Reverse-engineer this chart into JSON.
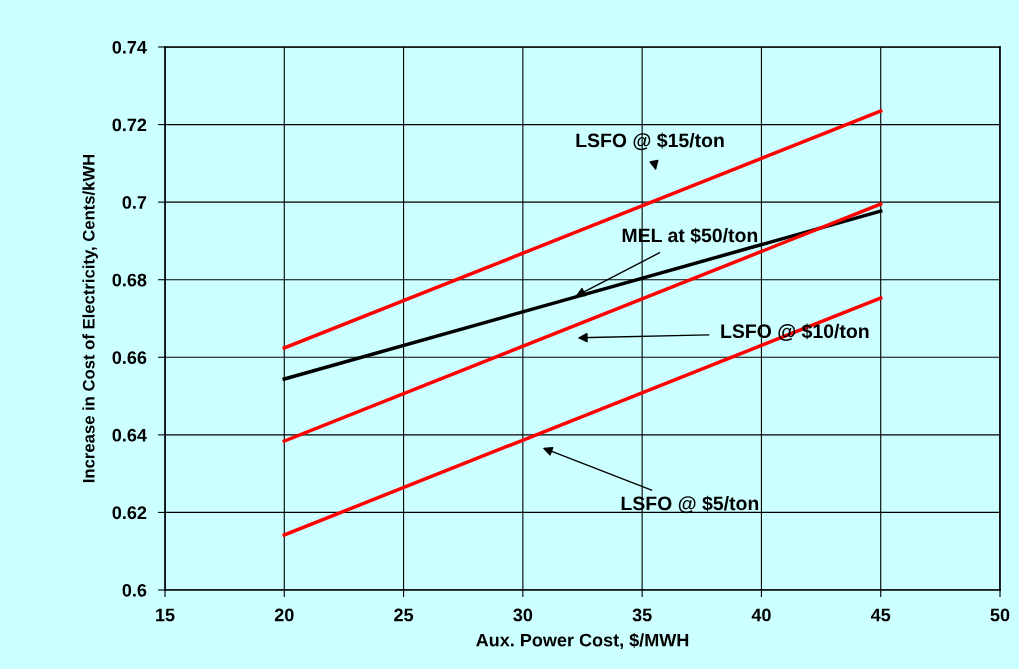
{
  "chart_data": {
    "type": "line",
    "xlabel": "Aux. Power Cost, $/MWH",
    "ylabel": "Increase in Cost of Electricity, Cents/kWH",
    "x": [
      20,
      45
    ],
    "series": [
      {
        "color": "#ff0000",
        "values": [
          0.6624,
          0.7235
        ]
      },
      {
        "color": "#000000",
        "values": [
          0.6544,
          0.6977
        ]
      },
      {
        "color": "#ff0000",
        "values": [
          0.6384,
          0.6995
        ]
      },
      {
        "color": "#ff0000",
        "values": [
          0.6142,
          0.6753
        ]
      }
    ],
    "xlim": [
      15,
      50
    ],
    "xticks": [
      15,
      20,
      25,
      30,
      35,
      40,
      45,
      50
    ],
    "ylim": [
      0.6,
      0.74
    ],
    "yticks": [
      0.6,
      0.62,
      0.64,
      0.66,
      0.68,
      0.7,
      0.72,
      0.74
    ],
    "grid": true,
    "marker": "none",
    "line_style": "solid",
    "annotations": [
      "LSFO @ $15/ton",
      {
        "text": "MEL at $50/ton",
        "x": 32.1,
        "y": 0.6754
      },
      "LSFO @ $10/ton",
      "LSFO @ $5/ton"
    ]
  }
}
